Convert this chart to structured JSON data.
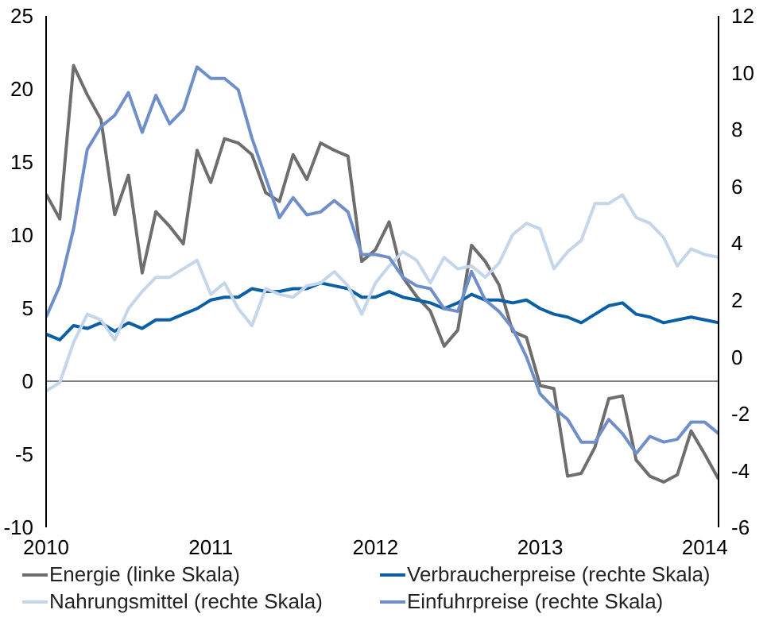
{
  "chart_data": {
    "type": "line",
    "x": [
      "2010-01",
      "2010-02",
      "2010-03",
      "2010-04",
      "2010-05",
      "2010-06",
      "2010-07",
      "2010-08",
      "2010-09",
      "2010-10",
      "2010-11",
      "2010-12",
      "2011-01",
      "2011-02",
      "2011-03",
      "2011-04",
      "2011-05",
      "2011-06",
      "2011-07",
      "2011-08",
      "2011-09",
      "2011-10",
      "2011-11",
      "2011-12",
      "2012-01",
      "2012-02",
      "2012-03",
      "2012-04",
      "2012-05",
      "2012-06",
      "2012-07",
      "2012-08",
      "2012-09",
      "2012-10",
      "2012-11",
      "2012-12",
      "2013-01",
      "2013-02",
      "2013-03",
      "2013-04",
      "2013-05",
      "2013-06",
      "2013-07",
      "2013-08",
      "2013-09",
      "2013-10",
      "2013-11",
      "2013-12",
      "2014-01",
      "2014-02"
    ],
    "series": [
      {
        "name": "Energie (linke Skala)",
        "color": "#6e6e6e",
        "axis": "y",
        "values": [
          12.8,
          11.1,
          21.6,
          19.6,
          17.9,
          11.4,
          14.1,
          7.4,
          11.6,
          10.6,
          9.4,
          15.8,
          13.6,
          16.6,
          16.3,
          15.5,
          12.9,
          12.3,
          15.5,
          13.8,
          16.3,
          15.8,
          15.4,
          8.2,
          9.0,
          10.9,
          7.1,
          5.8,
          4.8,
          2.4,
          3.5,
          9.3,
          8.2,
          6.6,
          3.4,
          3.0,
          -0.3,
          -0.5,
          -6.5,
          -6.3,
          -4.5,
          -1.2,
          -1.0,
          -5.4,
          -6.5,
          -6.9,
          -6.4,
          -3.4,
          -5.0,
          -6.7
        ]
      },
      {
        "name": "Verbraucherpreise (rechte Skala)",
        "color": "#0b5fa5",
        "axis": "y2",
        "values": [
          0.8,
          0.6,
          1.1,
          1.0,
          1.2,
          0.9,
          1.2,
          1.0,
          1.3,
          1.3,
          1.5,
          1.7,
          2.0,
          2.1,
          2.1,
          2.4,
          2.3,
          2.3,
          2.4,
          2.4,
          2.6,
          2.5,
          2.4,
          2.1,
          2.1,
          2.3,
          2.1,
          2.0,
          1.9,
          1.7,
          1.9,
          2.2,
          2.0,
          2.0,
          1.9,
          2.0,
          1.7,
          1.5,
          1.4,
          1.2,
          1.5,
          1.8,
          1.9,
          1.5,
          1.4,
          1.2,
          1.3,
          1.4,
          1.3,
          1.2
        ]
      },
      {
        "name": "Nahrungsmittel (rechte Skala)",
        "color": "#c5d5ea",
        "axis": "y2",
        "values": [
          -1.2,
          -0.9,
          0.5,
          1.5,
          1.3,
          0.6,
          1.7,
          2.3,
          2.8,
          2.8,
          3.1,
          3.4,
          2.2,
          2.6,
          1.7,
          1.1,
          2.4,
          2.2,
          2.1,
          2.5,
          2.6,
          3.0,
          2.5,
          1.5,
          2.6,
          3.2,
          3.7,
          3.4,
          2.6,
          3.5,
          3.1,
          3.2,
          2.8,
          3.3,
          4.3,
          4.7,
          4.5,
          3.1,
          3.7,
          4.1,
          5.4,
          5.4,
          5.7,
          4.9,
          4.7,
          4.2,
          3.2,
          3.8,
          3.6,
          3.5
        ]
      },
      {
        "name": "Einfuhrpreise (rechte Skala)",
        "color": "#6f8fcb",
        "axis": "y2",
        "values": [
          1.4,
          2.5,
          4.5,
          7.3,
          8.1,
          8.5,
          9.3,
          7.9,
          9.2,
          8.2,
          8.7,
          10.2,
          9.8,
          9.8,
          9.4,
          7.7,
          6.3,
          4.9,
          5.6,
          5.0,
          5.1,
          5.5,
          5.1,
          3.6,
          3.6,
          3.5,
          2.8,
          2.5,
          2.4,
          1.7,
          1.6,
          3.0,
          2.0,
          1.6,
          1.0,
          0.0,
          -1.3,
          -1.8,
          -2.2,
          -3.0,
          -3.0,
          -2.2,
          -2.7,
          -3.4,
          -2.8,
          -3.0,
          -2.9,
          -2.3,
          -2.3,
          -2.7
        ]
      }
    ],
    "xlim": [
      "2010-01",
      "2014-02"
    ],
    "xticks": [
      {
        "value": "2010-01",
        "label": "2010"
      },
      {
        "value": "2011-01",
        "label": "2011"
      },
      {
        "value": "2012-01",
        "label": "2012"
      },
      {
        "value": "2013-01",
        "label": "2013"
      },
      {
        "value": "2014-01",
        "label": "2014"
      }
    ],
    "ylim": [
      -10,
      25
    ],
    "yticks": [
      -10,
      -5,
      0,
      5,
      10,
      15,
      20,
      25
    ],
    "y2lim": [
      -6,
      12
    ],
    "y2ticks": [
      -6,
      -4,
      -2,
      0,
      2,
      4,
      6,
      8,
      10,
      12
    ],
    "ref_lines": [
      {
        "axis": "y",
        "value": 0,
        "color": "#808080"
      }
    ],
    "legend": "bottom"
  }
}
